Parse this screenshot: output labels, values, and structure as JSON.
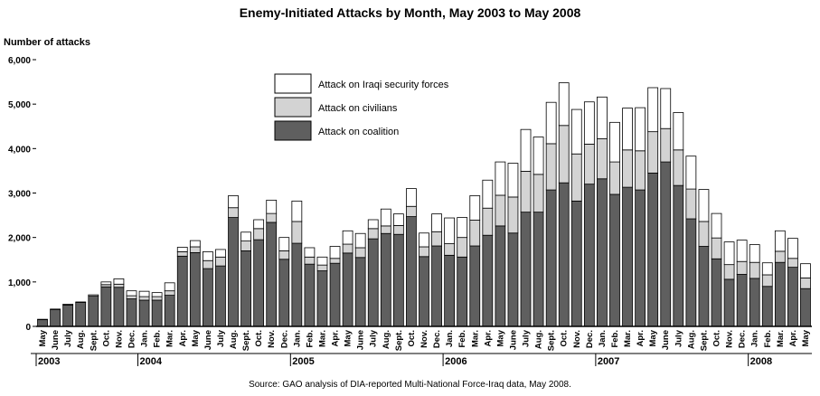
{
  "chart_data": {
    "type": "bar",
    "stacked": true,
    "title": "Enemy-Initiated Attacks by Month, May 2003 to May 2008",
    "ylabel": "Number of attacks",
    "xlabel": "",
    "ylim": [
      0,
      6000
    ],
    "yticks": [
      0,
      1000,
      2000,
      3000,
      4000,
      5000,
      6000
    ],
    "ytick_labels": [
      "0",
      "1,000",
      "2,000",
      "3,000",
      "4,000",
      "5,000",
      "6,000"
    ],
    "grid": false,
    "legend_position": "top-center",
    "categories": [
      "May",
      "June",
      "July",
      "Aug.",
      "Sept.",
      "Oct.",
      "Nov.",
      "Dec.",
      "Jan.",
      "Feb.",
      "Mar.",
      "Apr.",
      "May",
      "June",
      "July",
      "Aug.",
      "Sept.",
      "Oct.",
      "Nov.",
      "Dec.",
      "Jan.",
      "Feb.",
      "Mar.",
      "Apr.",
      "May",
      "June",
      "July",
      "Aug.",
      "Sept.",
      "Oct.",
      "Nov.",
      "Dec.",
      "Jan.",
      "Feb.",
      "Mar.",
      "Apr.",
      "May",
      "June",
      "July",
      "Aug.",
      "Sept.",
      "Oct.",
      "Nov.",
      "Dec.",
      "Jan.",
      "Feb.",
      "Mar.",
      "Apr.",
      "May",
      "June",
      "July",
      "Aug.",
      "Sept.",
      "Oct.",
      "Nov.",
      "Dec.",
      "Jan.",
      "Feb.",
      "Mar.",
      "Apr.",
      "May"
    ],
    "year_groups": [
      {
        "label": "2003",
        "start": 0,
        "count": 8
      },
      {
        "label": "2004",
        "start": 8,
        "count": 12
      },
      {
        "label": "2005",
        "start": 20,
        "count": 12
      },
      {
        "label": "2006",
        "start": 32,
        "count": 12
      },
      {
        "label": "2007",
        "start": 44,
        "count": 12
      },
      {
        "label": "2008",
        "start": 56,
        "count": 5
      }
    ],
    "series": [
      {
        "name": "Attack on coalition",
        "color": "#5f5f5f",
        "values": [
          150,
          380,
          480,
          540,
          680,
          890,
          880,
          620,
          590,
          590,
          700,
          1580,
          1660,
          1300,
          1360,
          2450,
          1700,
          1950,
          2340,
          1510,
          1870,
          1400,
          1250,
          1420,
          1650,
          1550,
          1970,
          2090,
          2070,
          2470,
          1570,
          1810,
          1600,
          1560,
          1810,
          2050,
          2260,
          2100,
          2570,
          2570,
          3070,
          3230,
          2820,
          3200,
          3320,
          2970,
          3130,
          3070,
          3450,
          3700,
          3170,
          2420,
          1800,
          1520,
          1060,
          1170,
          1080,
          900,
          1440,
          1330,
          850
        ]
      },
      {
        "name": "Attack on civilians",
        "color": "#d3d3d3",
        "values": [
          10,
          10,
          20,
          10,
          30,
          50,
          70,
          70,
          80,
          80,
          100,
          100,
          130,
          180,
          200,
          220,
          220,
          250,
          200,
          190,
          490,
          160,
          130,
          110,
          200,
          220,
          230,
          170,
          200,
          230,
          220,
          320,
          260,
          440,
          580,
          610,
          690,
          810,
          920,
          850,
          1040,
          1290,
          1060,
          900,
          900,
          730,
          840,
          880,
          930,
          750,
          800,
          670,
          560,
          470,
          330,
          290,
          360,
          260,
          250,
          200,
          240
        ]
      },
      {
        "name": "Attack on Iraqi security forces",
        "color": "#ffffff",
        "values": [
          0,
          0,
          0,
          0,
          0,
          60,
          120,
          110,
          120,
          90,
          180,
          100,
          140,
          200,
          170,
          270,
          200,
          200,
          300,
          300,
          460,
          210,
          180,
          270,
          300,
          320,
          200,
          380,
          260,
          400,
          310,
          400,
          580,
          450,
          550,
          630,
          750,
          760,
          940,
          840,
          930,
          960,
          1000,
          950,
          940,
          890,
          940,
          970,
          990,
          900,
          840,
          740,
          720,
          550,
          510,
          480,
          400,
          270,
          460,
          450,
          320
        ]
      }
    ]
  },
  "source_note": "Source: GAO analysis of DIA-reported Multi-National Force-Iraq data, May 2008."
}
